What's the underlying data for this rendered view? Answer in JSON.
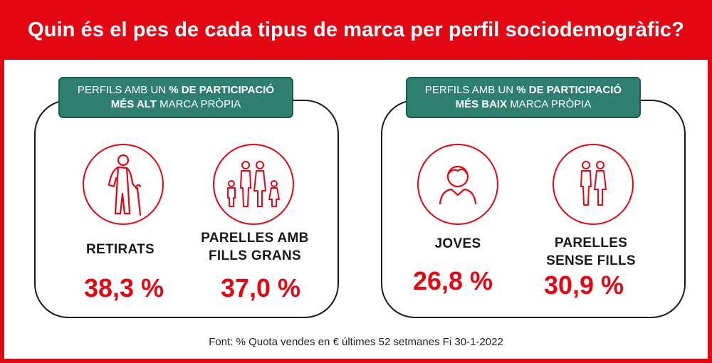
{
  "title": "Quin és el pes de cada tipus de marca per perfil sociodemogràfic?",
  "colors": {
    "accent": "#e30613",
    "banner": "#2f7f70"
  },
  "left_panel": {
    "banner_line1_pre": "PERFILS AMB UN ",
    "banner_line1_bold": "% DE PARTICIPACIÓ",
    "banner_line2_bold": "MÉS ALT",
    "banner_line2_post": " MARCA PRÒPIA",
    "items": [
      {
        "icon": "elderly-person-icon",
        "label_line1": "RETIRATS",
        "label_line2": "",
        "value": "38,3 %"
      },
      {
        "icon": "family-with-children-icon",
        "label_line1": "PARELLES AMB",
        "label_line2": "FILLS GRANS",
        "value": "37,0 %"
      }
    ]
  },
  "right_panel": {
    "banner_line1_pre": "PERFILS AMB UN ",
    "banner_line1_bold": "% DE PARTICIPACIÓ",
    "banner_line2_bold": "MÉS BAIX",
    "banner_line2_post": " MARCA PRÒPIA",
    "items": [
      {
        "icon": "young-person-icon",
        "label_line1": "JOVES",
        "label_line2": "",
        "value": "26,8 %"
      },
      {
        "icon": "couple-icon",
        "label_line1": "PARELLES",
        "label_line2": "SENSE FILLS",
        "value": "30,9 %"
      }
    ]
  },
  "footer": "Font:  % Quota vendes en € últimes 52 setmanes Fi 30-1-2022"
}
